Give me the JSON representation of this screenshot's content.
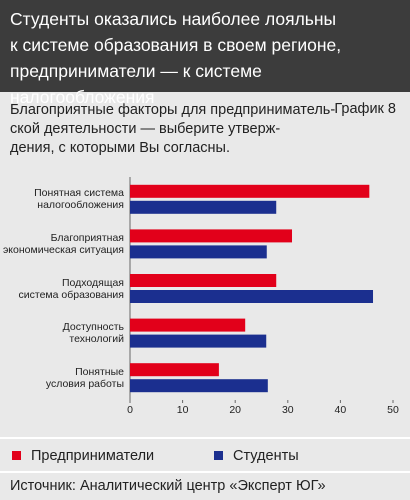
{
  "chart_data": {
    "type": "bar",
    "orientation": "horizontal",
    "title": "Студенты оказались наиболее лояльны\nк системе образования в своем регионе,\nпредприниматели — к системе налогообложения",
    "subtitle": "Благоприятные факторы для предприниматель-\nской деятельности — выберите утверж-\nдения, с которыми Вы согласны.",
    "chart_label": "График 8",
    "categories": [
      "Понятная система\nналогообложения",
      "Благоприятная\nэкономическая ситуация",
      "Подходящая\nсистема образования",
      "Доступность\nтехнологий",
      "Понятные\nусловия работы"
    ],
    "series": [
      {
        "name": "Предприниматели",
        "color": "#e2001a",
        "values": [
          45.5,
          30.8,
          27.8,
          21.9,
          16.9
        ]
      },
      {
        "name": "Студенты",
        "color": "#1b2f8f",
        "values": [
          27.8,
          26.0,
          46.2,
          25.9,
          26.2
        ]
      }
    ],
    "xlim": [
      0,
      50
    ],
    "xticks": [
      0,
      10,
      20,
      30,
      40,
      50
    ],
    "source": "Источник: Аналитический центр «Эксперт ЮГ»"
  }
}
